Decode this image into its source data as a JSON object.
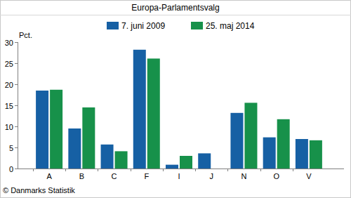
{
  "chart_data": {
    "type": "bar",
    "title": "Europa-Parlamentsvalg",
    "y_label": "Pct.",
    "source": "© Danmarks Statistik",
    "categories": [
      "A",
      "B",
      "C",
      "F",
      "I",
      "J",
      "N",
      "O",
      "V"
    ],
    "series": [
      {
        "name": "7. juni 2009",
        "color": "#1660a4",
        "values": [
          18.5,
          9.5,
          5.7,
          28.2,
          0.9,
          3.6,
          13.2,
          7.4,
          7.0
        ]
      },
      {
        "name": "25. maj 2014",
        "color": "#17914a",
        "values": [
          18.7,
          14.5,
          4.1,
          26.1,
          3.0,
          null,
          15.6,
          11.7,
          6.7
        ]
      }
    ],
    "ylim": [
      0,
      30
    ],
    "yticks": [
      0,
      5,
      10,
      15,
      20,
      25,
      30
    ],
    "grid": false,
    "legend": "top"
  }
}
